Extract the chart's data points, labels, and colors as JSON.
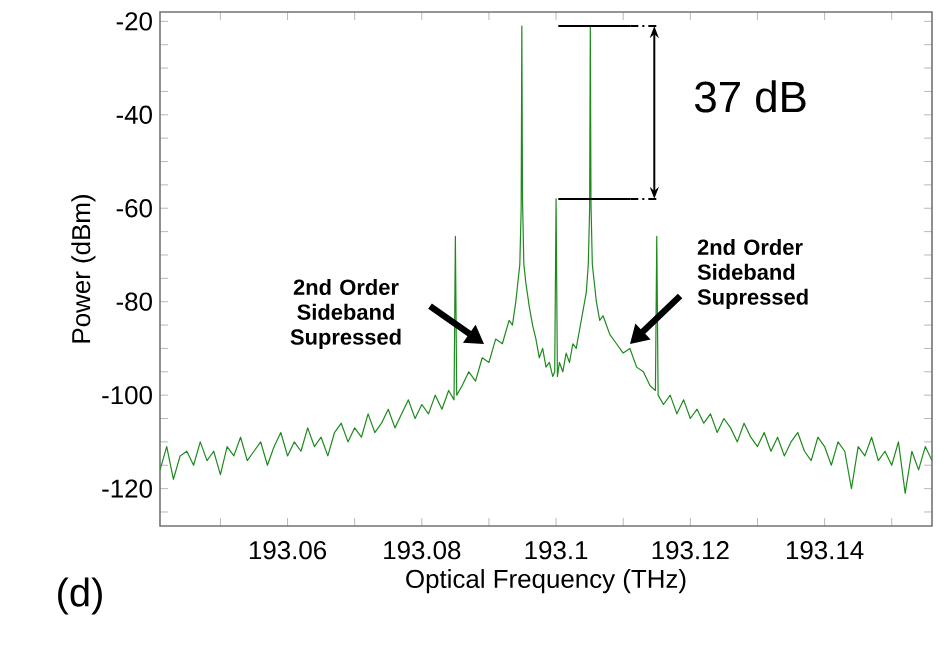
{
  "chart_data": {
    "type": "line",
    "xlabel": "Optical Frequency (THz)",
    "ylabel": "Power (dBm)",
    "xlim": [
      193.041,
      193.156
    ],
    "ylim": [
      -128,
      -18
    ],
    "xticks": [
      {
        "value": 193.05,
        "label": null
      },
      193.06,
      {
        "value": 193.07,
        "label": null
      },
      193.08,
      {
        "value": 193.09,
        "label": null
      },
      193.1,
      {
        "value": 193.11,
        "label": null
      },
      193.12,
      {
        "value": 193.13,
        "label": null
      },
      193.14,
      {
        "value": 193.15,
        "label": null
      }
    ],
    "yticks": [
      {
        "value": -125,
        "label": null
      },
      -120,
      {
        "value": -115,
        "label": null
      },
      {
        "value": -110,
        "label": null
      },
      {
        "value": -105,
        "label": null
      },
      -100,
      {
        "value": -95,
        "label": null
      },
      {
        "value": -90,
        "label": null
      },
      {
        "value": -85,
        "label": null
      },
      -80,
      {
        "value": -75,
        "label": null
      },
      {
        "value": -70,
        "label": null
      },
      {
        "value": -65,
        "label": null
      },
      -60,
      {
        "value": -55,
        "label": null
      },
      {
        "value": -50,
        "label": null
      },
      {
        "value": -45,
        "label": null
      },
      -40,
      {
        "value": -35,
        "label": null
      },
      {
        "value": -30,
        "label": null
      },
      {
        "value": -25,
        "label": null
      },
      -20
    ],
    "grid": false,
    "marker": "none",
    "line_style": "solid",
    "annotations": [
      "2nd Order Sideband Supressed",
      "2nd Order Sideband Supressed",
      "37 dB",
      "(d)"
    ],
    "series": [
      {
        "color": "#1e8a1e",
        "x": [
          193.041,
          193.042,
          193.043,
          193.044,
          193.045,
          193.046,
          193.047,
          193.048,
          193.049,
          193.05,
          193.051,
          193.052,
          193.053,
          193.054,
          193.055,
          193.056,
          193.057,
          193.058,
          193.059,
          193.06,
          193.061,
          193.062,
          193.063,
          193.064,
          193.065,
          193.066,
          193.067,
          193.068,
          193.069,
          193.07,
          193.071,
          193.072,
          193.073,
          193.074,
          193.075,
          193.076,
          193.077,
          193.078,
          193.079,
          193.08,
          193.081,
          193.082,
          193.083,
          193.084,
          193.0848,
          193.085,
          193.0852,
          193.086,
          193.087,
          193.088,
          193.089,
          193.09,
          193.091,
          193.092,
          193.093,
          193.0935,
          193.094,
          193.0943,
          193.0946,
          193.0948,
          193.0949,
          193.095,
          193.0952,
          193.0955,
          193.096,
          193.0965,
          193.097,
          193.0975,
          193.098,
          193.0985,
          193.099,
          193.0995,
          193.0998,
          193.1,
          193.1002,
          193.1005,
          193.101,
          193.1015,
          193.102,
          193.1025,
          193.103,
          193.1035,
          193.104,
          193.1045,
          193.1048,
          193.105,
          193.1051,
          193.1052,
          193.1054,
          193.1057,
          193.106,
          193.1065,
          193.107,
          193.108,
          193.109,
          193.11,
          193.111,
          193.112,
          193.113,
          193.114,
          193.1148,
          193.115,
          193.1152,
          193.116,
          193.117,
          193.118,
          193.119,
          193.12,
          193.121,
          193.122,
          193.123,
          193.124,
          193.125,
          193.126,
          193.127,
          193.128,
          193.129,
          193.13,
          193.131,
          193.132,
          193.133,
          193.134,
          193.135,
          193.136,
          193.137,
          193.138,
          193.139,
          193.14,
          193.141,
          193.142,
          193.143,
          193.144,
          193.145,
          193.146,
          193.147,
          193.148,
          193.149,
          193.15,
          193.151,
          193.152,
          193.153,
          193.154,
          193.155,
          193.156
        ],
        "values": [
          -116,
          -111,
          -118,
          -113,
          -112,
          -115,
          -110,
          -114,
          -112,
          -117,
          -111,
          -113,
          -109,
          -114,
          -112,
          -110,
          -115,
          -111,
          -108,
          -113,
          -110,
          -112,
          -107,
          -111,
          -109,
          -113,
          -108,
          -106,
          -110,
          -107,
          -109,
          -104,
          -108,
          -106,
          -103,
          -107,
          -104,
          -101,
          -105,
          -102,
          -104,
          -100,
          -103,
          -99,
          -101,
          -66,
          -100,
          -98,
          -95,
          -97,
          -92,
          -93,
          -88,
          -89,
          -84,
          -85,
          -80,
          -76,
          -72,
          -60,
          -21,
          -58,
          -72,
          -76,
          -81,
          -85,
          -88,
          -92,
          -90,
          -94,
          -93,
          -96,
          -95,
          -58,
          -96,
          -93,
          -95,
          -91,
          -93,
          -89,
          -90,
          -86,
          -82,
          -78,
          -72,
          -60,
          -21,
          -59,
          -72,
          -76,
          -80,
          -84,
          -83,
          -87,
          -89,
          -91,
          -90,
          -94,
          -95,
          -98,
          -99,
          -66,
          -100,
          -102,
          -100,
          -104,
          -101,
          -105,
          -103,
          -106,
          -104,
          -108,
          -105,
          -107,
          -110,
          -106,
          -109,
          -111,
          -108,
          -112,
          -109,
          -113,
          -110,
          -108,
          -112,
          -114,
          -109,
          -111,
          -115,
          -110,
          -112,
          -120,
          -111,
          -113,
          -109,
          -114,
          -112,
          -115,
          -110,
          -121,
          -112,
          -116,
          -111,
          -114
        ]
      }
    ]
  }
}
